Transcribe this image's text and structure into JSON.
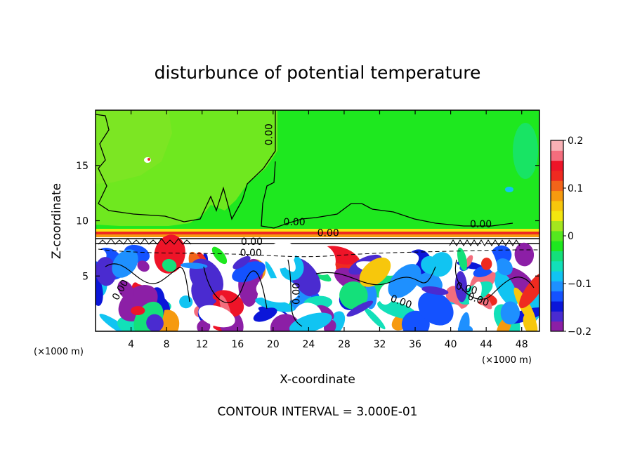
{
  "chart_data": {
    "type": "heatmap",
    "title": "disturbunce of potential temperature",
    "xlabel": "X-coordinate",
    "ylabel": "Z-coordinate",
    "x_unit": "(×1000 m)",
    "y_unit": "(×1000 m)",
    "xlim": [
      0,
      50
    ],
    "ylim": [
      0,
      20
    ],
    "x_ticks": [
      4,
      8,
      12,
      16,
      20,
      24,
      28,
      32,
      36,
      40,
      44,
      48
    ],
    "y_ticks": [
      5,
      10,
      15
    ],
    "colorbar": {
      "min": -0.2,
      "max": 0.2,
      "ticks": [
        {
          "value": 0.2,
          "label": "0.2"
        },
        {
          "value": 0.1,
          "label": "0.1"
        },
        {
          "value": 0,
          "label": "0"
        },
        {
          "value": -0.1,
          "label": "−0.1"
        },
        {
          "value": -0.2,
          "label": "−0.2"
        }
      ],
      "colors": [
        "#8c1fa6",
        "#4a2bd0",
        "#0b16d9",
        "#1452ff",
        "#1e90ff",
        "#11c4f2",
        "#12e0b9",
        "#14e07a",
        "#1ee81f",
        "#55e81f",
        "#a4e61e",
        "#f3e60f",
        "#f7c70c",
        "#f69a0f",
        "#f2641a",
        "#ef2a20",
        "#ee1428",
        "#f46d7d",
        "#f8b1b5"
      ]
    },
    "contour_labels": [
      {
        "text": "0.00",
        "x": 19.9,
        "y": 17.8,
        "angle": -90
      },
      {
        "text": "0.00",
        "x": 22.4,
        "y": 9.6
      },
      {
        "text": "0.00",
        "x": 26.2,
        "y": 8.6
      },
      {
        "text": "0.00",
        "x": 17.6,
        "y": 7.8
      },
      {
        "text": "0.00",
        "x": 17.5,
        "y": 6.8
      },
      {
        "text": "0.00",
        "x": 43.4,
        "y": 9.4
      },
      {
        "text": "0.00",
        "x": 3.1,
        "y": 3.6,
        "angle": -60
      },
      {
        "text": "0.00",
        "x": 23.0,
        "y": 3.4,
        "angle": -90
      },
      {
        "text": "0.00",
        "x": 34.3,
        "y": 2.4,
        "angle": 20
      },
      {
        "text": "0.00",
        "x": 41.7,
        "y": 3.6,
        "angle": 15
      },
      {
        "text": "0.00",
        "x": 43.0,
        "y": 2.6,
        "angle": 20
      }
    ],
    "field_description": [
      {
        "region": "upper layer z 9.3–20",
        "value": 0.0
      },
      {
        "region": "inversion line z ≈ 8.9",
        "value": 0.2
      },
      {
        "region": "lower turbulent layer z 0–7",
        "value_range": [
          -0.2,
          0.2
        ]
      }
    ],
    "footer": "CONTOUR INTERVAL = 3.000E-01"
  }
}
